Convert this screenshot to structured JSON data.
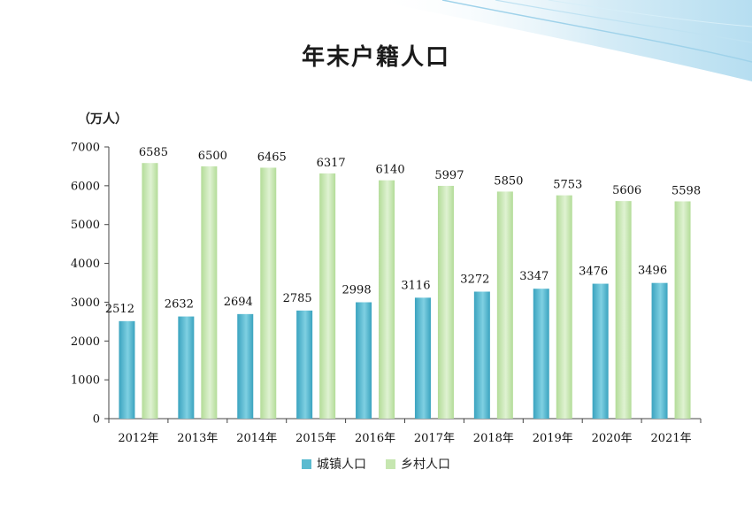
{
  "chart_data": {
    "type": "bar",
    "title": "年末户籍人口",
    "ylabel": "（万人）",
    "categories": [
      "2012年",
      "2013年",
      "2014年",
      "2015年",
      "2016年",
      "2017年",
      "2018年",
      "2019年",
      "2020年",
      "2021年"
    ],
    "yticks": [
      "0",
      "1000",
      "2000",
      "3000",
      "4000",
      "5000",
      "6000",
      "7000"
    ],
    "ylim": [
      0,
      7000
    ],
    "series": [
      {
        "name": "城镇人口",
        "color": "#5bbbd0",
        "values": [
          2512,
          2632,
          2694,
          2785,
          2998,
          3116,
          3272,
          3347,
          3476,
          3496
        ]
      },
      {
        "name": "乡村人口",
        "color": "#c6e6b0",
        "values": [
          6585,
          6500,
          6465,
          6317,
          6140,
          5997,
          5850,
          5753,
          5606,
          5598
        ]
      }
    ],
    "legend_position": "bottom",
    "grid": false
  }
}
